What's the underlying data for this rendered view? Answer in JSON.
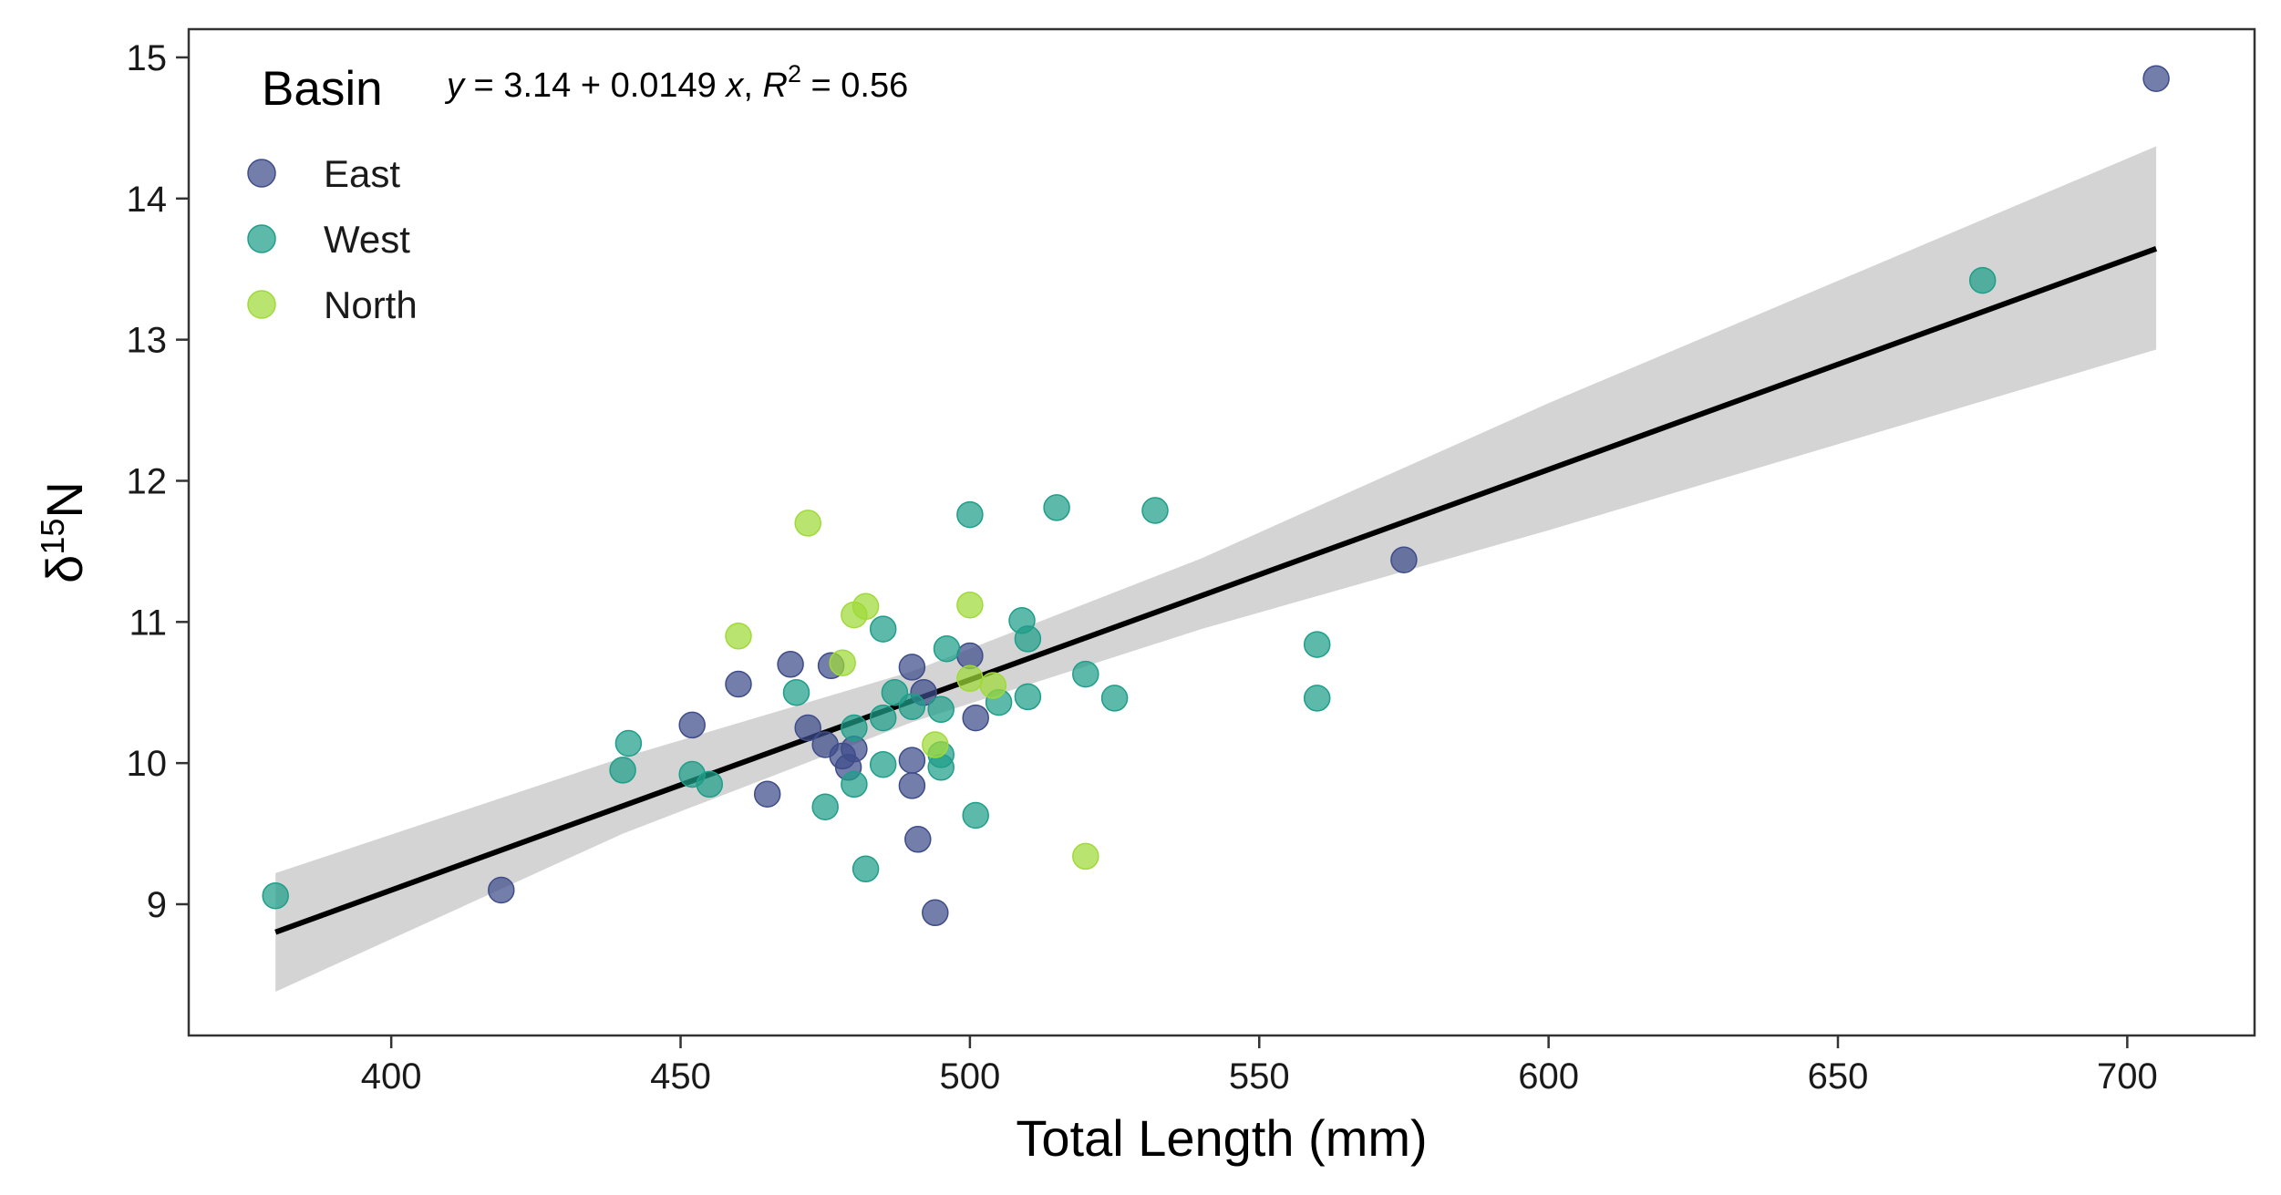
{
  "chart_data": {
    "type": "scatter",
    "xlabel": "Total Length (mm)",
    "ylabel": {
      "prefix": "δ",
      "sup": "15",
      "suffix": "N"
    },
    "xlim": [
      365,
      722
    ],
    "ylim": [
      8.07,
      15.2
    ],
    "xticks": [
      400,
      450,
      500,
      550,
      600,
      650,
      700
    ],
    "yticks": [
      9,
      10,
      11,
      12,
      13,
      14,
      15
    ],
    "grid": false,
    "legend": {
      "title": "Basin",
      "position": "top-left",
      "entries": [
        "East",
        "West",
        "North"
      ]
    },
    "annotation": {
      "y_var": "y",
      "equation": " = 3.14 + 0.0149 ",
      "x_var": "x",
      "sep": ", ",
      "r_var": "R",
      "r_sup": "2",
      "r_value": " = 0.56"
    },
    "fit": {
      "intercept": 3.14,
      "slope": 0.0149,
      "r2": 0.56,
      "x_range": [
        380,
        705
      ],
      "ci_band": [
        {
          "x": 380,
          "lower": 8.38,
          "upper": 9.22
        },
        {
          "x": 440,
          "lower": 9.5,
          "upper": 10.04
        },
        {
          "x": 490,
          "lower": 10.29,
          "upper": 10.65
        },
        {
          "x": 540,
          "lower": 10.95,
          "upper": 11.45
        },
        {
          "x": 600,
          "lower": 11.65,
          "upper": 12.55
        },
        {
          "x": 705,
          "lower": 12.93,
          "upper": 14.37
        }
      ]
    },
    "series": [
      {
        "name": "East",
        "color": "#3e4c8a",
        "points": [
          [
            419,
            9.1
          ],
          [
            452,
            10.27
          ],
          [
            460,
            10.56
          ],
          [
            465,
            9.78
          ],
          [
            469,
            10.7
          ],
          [
            472,
            10.25
          ],
          [
            475,
            10.13
          ],
          [
            476,
            10.69
          ],
          [
            478,
            10.05
          ],
          [
            479,
            9.97
          ],
          [
            480,
            10.1
          ],
          [
            490,
            10.68
          ],
          [
            490,
            10.02
          ],
          [
            490,
            9.84
          ],
          [
            491,
            9.46
          ],
          [
            492,
            10.5
          ],
          [
            494,
            8.94
          ],
          [
            500,
            10.76
          ],
          [
            501,
            10.32
          ],
          [
            575,
            11.44
          ],
          [
            705,
            14.85
          ]
        ]
      },
      {
        "name": "West",
        "color": "#1f9e89",
        "points": [
          [
            380,
            9.06
          ],
          [
            440,
            9.95
          ],
          [
            441,
            10.14
          ],
          [
            452,
            9.92
          ],
          [
            455,
            9.85
          ],
          [
            470,
            10.5
          ],
          [
            475,
            9.69
          ],
          [
            480,
            9.85
          ],
          [
            480,
            10.25
          ],
          [
            482,
            9.25
          ],
          [
            485,
            10.95
          ],
          [
            485,
            9.99
          ],
          [
            485,
            10.32
          ],
          [
            487,
            10.5
          ],
          [
            490,
            10.4
          ],
          [
            495,
            10.38
          ],
          [
            495,
            10.06
          ],
          [
            495,
            9.97
          ],
          [
            496,
            10.81
          ],
          [
            500,
            11.76
          ],
          [
            501,
            9.63
          ],
          [
            505,
            10.43
          ],
          [
            509,
            11.01
          ],
          [
            510,
            10.88
          ],
          [
            510,
            10.47
          ],
          [
            515,
            11.81
          ],
          [
            520,
            10.63
          ],
          [
            525,
            10.46
          ],
          [
            532,
            11.79
          ],
          [
            560,
            10.84
          ],
          [
            560,
            10.46
          ],
          [
            675,
            13.42
          ]
        ]
      },
      {
        "name": "North",
        "color": "#a0da39",
        "points": [
          [
            460,
            10.9
          ],
          [
            472,
            11.7
          ],
          [
            478,
            10.71
          ],
          [
            480,
            11.05
          ],
          [
            482,
            11.11
          ],
          [
            494,
            10.13
          ],
          [
            500,
            11.12
          ],
          [
            500,
            10.6
          ],
          [
            504,
            10.55
          ],
          [
            520,
            9.34
          ]
        ]
      }
    ]
  }
}
